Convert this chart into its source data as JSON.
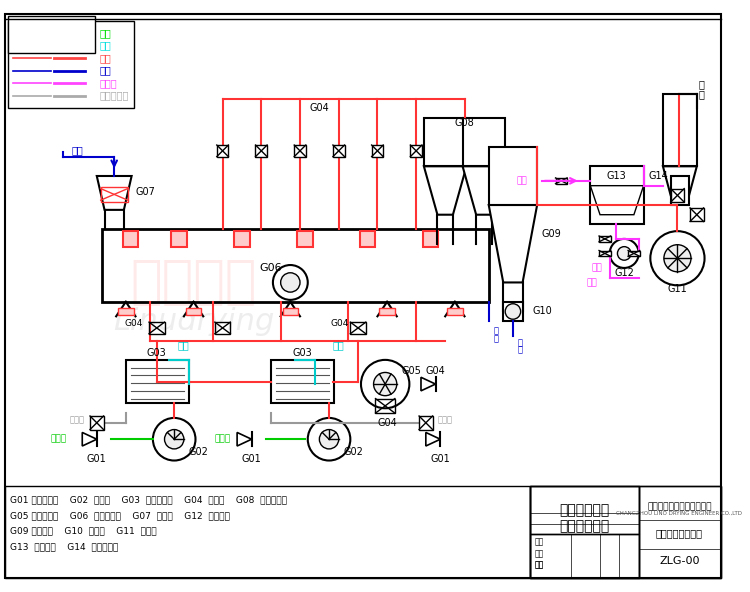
{
  "title": "硫铵振动流化床干燥流程图",
  "company": "常州力诺干燥工程有限公司",
  "subtitle": "振动流化床流程图",
  "code": "ZLG-00",
  "legend_items": [
    {
      "label": "冷风",
      "color": "#00dd00"
    },
    {
      "label": "蒸汽",
      "color": "#00dddd"
    },
    {
      "label": "热风",
      "color": "#ff4444"
    },
    {
      "label": "物料",
      "color": "#0000cc"
    },
    {
      "label": "洗涤水",
      "color": "#ff44ff"
    },
    {
      "label": "冷凝水出口",
      "color": "#aaaaaa"
    }
  ],
  "bg_color": "#ffffff",
  "border_color": "#000000",
  "watermark_color": "#ffcccc",
  "annotations": [
    "G01 空气过滤器    G02  送风机    G03  蒸气加热器    G04  调风门    G08  旋风分离器",
    "G05 冷却送风机    G06  振动流化床    G07  加料斗    G12  循环水泵",
    "G09 旋风料仓    G10  关风器    G11  引风机",
    "G13  循环水箱    G14  文氏洗涤器"
  ]
}
